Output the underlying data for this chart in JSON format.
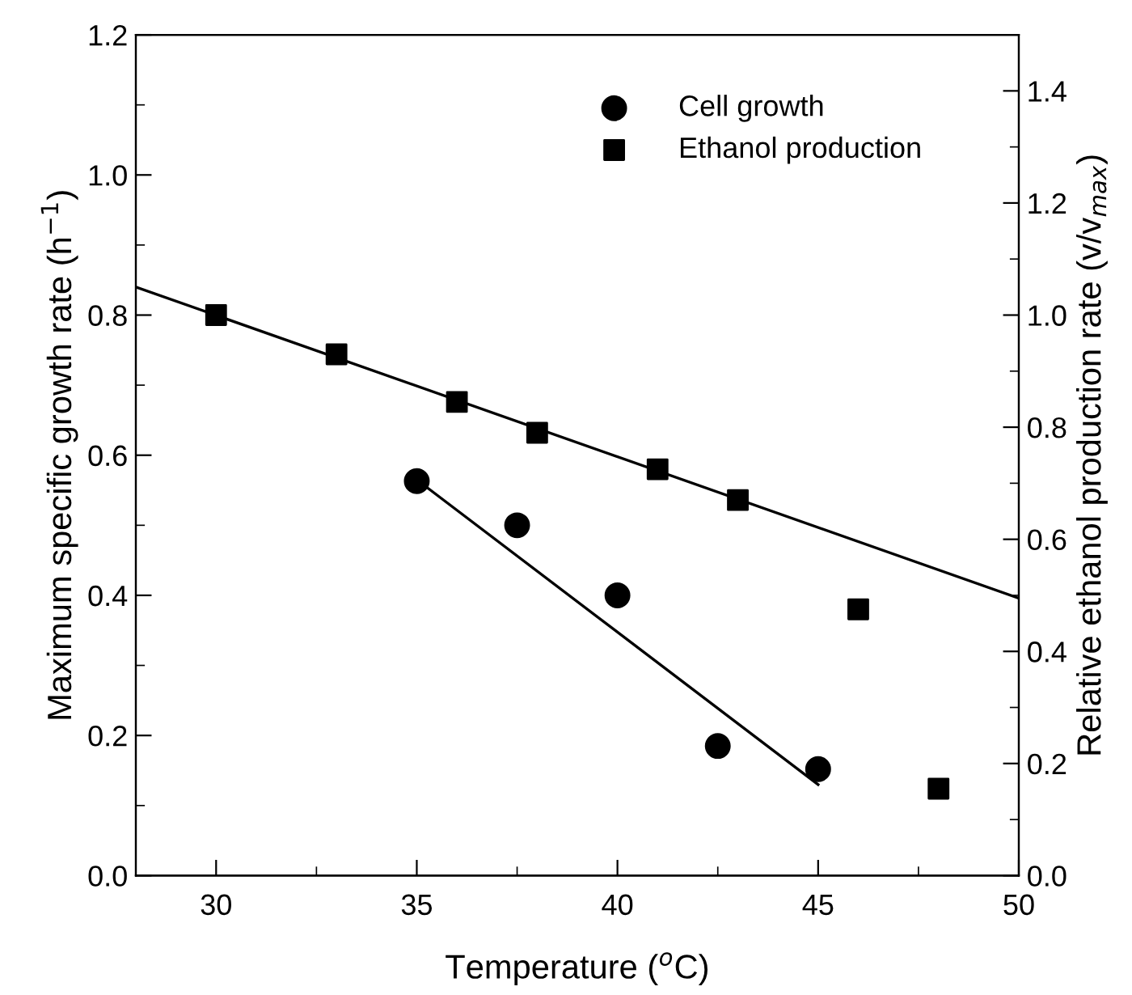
{
  "chart_data": {
    "type": "scatter",
    "xlabel": "Temperature ($^{o}$C)",
    "ylabel": "Maximum specific growth rate (h$^{−1}$)",
    "y2label": "Relative ethanol production rate (v/v$_{max}$)",
    "xlim": [
      28,
      50
    ],
    "xticks": [
      30,
      35,
      40,
      45,
      50
    ],
    "ylim": [
      0,
      1.2
    ],
    "yticks": [
      {
        "value": 0,
        "label": "0.0"
      },
      0.2,
      0.4,
      0.6,
      0.8,
      {
        "value": 1,
        "label": "1.0"
      },
      1.2
    ],
    "y2lim": [
      0,
      1.5
    ],
    "y2ticks": [
      {
        "value": 0,
        "label": "0.0"
      },
      0.2,
      0.4,
      0.6,
      0.8,
      {
        "value": 1,
        "label": "1.0"
      },
      1.2,
      1.4
    ],
    "grid": false,
    "legend": "top right",
    "series": [
      {
        "name": "Cell growth",
        "marker": "circle",
        "color": "#000000",
        "x": [
          35,
          37.5,
          40,
          42.5,
          45
        ],
        "values": [
          0.563,
          0.5,
          0.4,
          0.185,
          0.152
        ]
      },
      {
        "name": "Ethanol production",
        "marker": "square",
        "color": "#000000",
        "axis": "y2",
        "x": [
          30,
          33,
          36,
          38,
          41,
          43,
          46,
          48
        ],
        "values": [
          1.0,
          0.93,
          0.845,
          0.79,
          0.725,
          0.67,
          0.475,
          0.155
        ]
      },
      {
        "type": "line",
        "marker": "none",
        "line_style": "solid",
        "color": "#000000",
        "x": [
          35,
          45
        ],
        "values": [
          0.565,
          0.13
        ]
      },
      {
        "type": "line",
        "marker": "none",
        "line_style": "solid",
        "color": "#000000",
        "axis": "y2",
        "x": [
          28,
          50
        ],
        "values": [
          1.05,
          0.495
        ]
      }
    ]
  }
}
